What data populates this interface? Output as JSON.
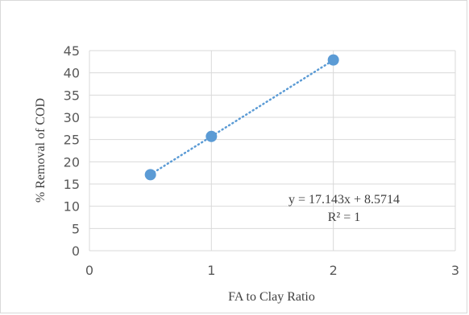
{
  "chart_data": {
    "type": "scatter",
    "title": "",
    "xlabel": "FA to Clay Ratio",
    "ylabel": "% Removal of COD",
    "xlim": [
      0,
      3
    ],
    "ylim": [
      0,
      45
    ],
    "x_ticks": [
      0,
      1,
      2,
      3
    ],
    "y_ticks": [
      0,
      5,
      10,
      15,
      20,
      25,
      30,
      35,
      40,
      45
    ],
    "grid": true,
    "legend": "none",
    "marker_color": "#5b9bd5",
    "series": [
      {
        "x": [
          0.5,
          1,
          2
        ],
        "y": [
          17.1,
          25.7,
          42.9
        ]
      }
    ],
    "trendline": {
      "type": "linear",
      "style": "dotted",
      "slope": 17.143,
      "intercept": 8.5714,
      "x_range": [
        0.5,
        2
      ],
      "equation_label": "y = 17.143x + 8.5714",
      "r2_label": "R² = 1"
    }
  }
}
